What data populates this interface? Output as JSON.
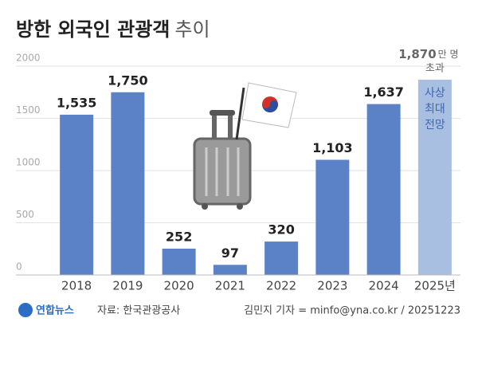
{
  "chart_data": {
    "type": "bar",
    "title": "방한 외국인 관광객",
    "title_light": "추이",
    "categories": [
      "2018",
      "2019",
      "2020",
      "2021",
      "2022",
      "2023",
      "2024",
      "2025년"
    ],
    "values": [
      1535,
      1750,
      252,
      97,
      320,
      1103,
      1637,
      1870
    ],
    "value_labels": [
      "1,535",
      "1,750",
      "252",
      "97",
      "320",
      "1,103",
      "1,637",
      "1,870"
    ],
    "value_unit": "만 명",
    "last_note": "초과",
    "last_bar_text": [
      "사상",
      "최대",
      "전망"
    ],
    "color": "#5b82c6",
    "highlight_color": "#a9bfe2",
    "ylim": [
      0,
      2000
    ],
    "yticks": [
      0,
      500,
      1000,
      1500,
      2000
    ],
    "grid": true,
    "source": "자료: 한국관광공사",
    "logo": "연합뉴스",
    "credit": "김민지 기자 = minfo@yna.co.kr / 20251223"
  }
}
